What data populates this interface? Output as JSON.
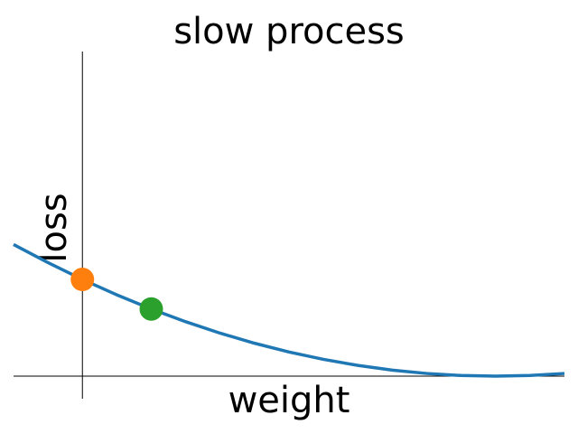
{
  "chart_data": {
    "type": "line",
    "title": "slow process",
    "x_label": "weight",
    "y_label": "loss",
    "series": [
      {
        "color": "#1f77b4",
        "x": [
          -1,
          -0.5,
          0,
          0.5,
          1,
          1.5,
          2,
          2.5,
          3,
          3.5,
          4,
          4.5,
          5,
          5.5,
          6,
          6.5,
          7
        ],
        "values": [
          49,
          42.25,
          36,
          30.25,
          25,
          20.25,
          16,
          12.25,
          9,
          6.25,
          4,
          2.25,
          1,
          0.25,
          0,
          0.25,
          1
        ]
      }
    ],
    "points": [
      {
        "color": "#ff7f0e",
        "x": 0,
        "y": 36
      },
      {
        "color": "#2ca02c",
        "x": 1,
        "y": 25
      }
    ],
    "xlim": [
      -1,
      7
    ],
    "ylim": [
      -8.4,
      120.8
    ]
  }
}
